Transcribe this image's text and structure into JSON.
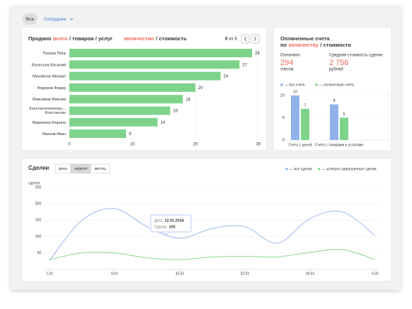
{
  "filters": {
    "all": "Все",
    "employee": "Сотрудник"
  },
  "chart_data": [
    {
      "type": "hbar",
      "title_parts": [
        "Продано",
        "всего",
        "/ товаров / услуг"
      ],
      "measure_parts": [
        "количество",
        "/ стоимость"
      ],
      "pager": {
        "current": 8,
        "of": "из",
        "total": 8
      },
      "categories": [
        "Петров Петр",
        "Васильев Василий",
        "Михайлов Михаил",
        "Федоров Федор",
        "Максимов Максим",
        "Константинопольс... Константин",
        "Маринина Марина",
        "Иванов Иван"
      ],
      "values": [
        29,
        27,
        24,
        20,
        18,
        16,
        14,
        9
      ],
      "color": "#7ed38b",
      "xlim": [
        0,
        30
      ],
      "xticks": [
        0,
        10,
        20,
        30
      ],
      "grid": true
    },
    {
      "type": "grouped_bar",
      "title": "Оплаченные счета",
      "subtitle_parts": [
        "по",
        "количеству",
        "/ стоимости"
      ],
      "stats": [
        {
          "label": "Оплачено",
          "value": 294,
          "unit": "счетов"
        },
        {
          "label": "Средняя стоимость сделки",
          "value": {
            "value": 2756,
            "label": "2 756"
          },
          "unit": "рублей"
        }
      ],
      "categories": [
        "Счета с ценой",
        "Счета с товарами и услугами"
      ],
      "series": [
        {
          "name": "— все счета",
          "color": "#8fb2ea",
          "values": [
            10,
            8
          ]
        },
        {
          "name": "— оплаченные счета",
          "color": "#7ed38b",
          "values": [
            7,
            5
          ]
        }
      ],
      "ylim": [
        0,
        10
      ],
      "yticks": [
        0,
        5,
        10
      ]
    },
    {
      "type": "line",
      "title": "Сделки",
      "periods": [
        "день",
        "неделя",
        "месяц"
      ],
      "ylabel": "сделок",
      "categories": [
        "1.01",
        null,
        "8.01",
        null,
        "15.01",
        null,
        "22.01",
        null,
        "29.01",
        null,
        "5.02"
      ],
      "series": [
        {
          "name": "— все сделки",
          "color": "#9bb7ea",
          "values": [
            28,
            150,
            185,
            130,
            95,
            125,
            130,
            80,
            155,
            175,
            103
          ]
        },
        {
          "name": "— успешно завершенные сделки",
          "color": "#86d68f",
          "values": [
            30,
            50,
            50,
            35,
            30,
            38,
            40,
            38,
            52,
            60,
            30
          ]
        }
      ],
      "ylim": [
        0,
        250
      ],
      "yticks": [
        50,
        100,
        150,
        200,
        250
      ],
      "grid": true,
      "tooltip": {
        "date_label": "Дата:",
        "date": "12.01.2016",
        "count_label": "Сделок:",
        "count": 105
      }
    }
  ]
}
